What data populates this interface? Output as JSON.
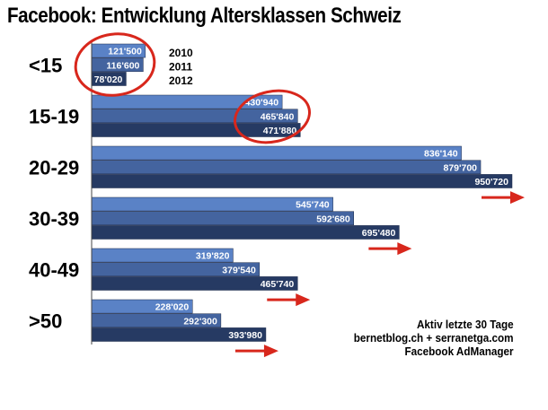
{
  "chart_data": {
    "type": "bar",
    "orientation": "horizontal",
    "title": "Facebook: Entwicklung Altersklassen Schweiz",
    "categories": [
      "<15",
      "15-19",
      "20-29",
      "30-39",
      "40-49",
      ">50"
    ],
    "series": [
      {
        "name": "2010",
        "color": "#5a82c6",
        "values": [
          121500,
          430940,
          836140,
          545740,
          319820,
          228020
        ],
        "labels": [
          "121'500",
          "430'940",
          "836'140",
          "545'740",
          "319'820",
          "228'020"
        ]
      },
      {
        "name": "2011",
        "color": "#44649f",
        "values": [
          116600,
          465840,
          879700,
          592680,
          379540,
          292300
        ],
        "labels": [
          "116'600",
          "465'840",
          "879'700",
          "592'680",
          "379'540",
          "292'300"
        ]
      },
      {
        "name": "2012",
        "color": "#263a63",
        "values": [
          78020,
          471880,
          950720,
          695480,
          465740,
          393980
        ],
        "labels": [
          "78'020",
          "471'880",
          "950'720",
          "695'480",
          "465'740",
          "393'980"
        ]
      }
    ],
    "xlim": [
      0,
      950720
    ],
    "grid": false,
    "legend": "top, next to first group",
    "annotations": {
      "circled_categories": [
        "<15",
        "15-19"
      ],
      "arrow_categories": [
        "20-29",
        "30-39",
        "40-49",
        ">50"
      ],
      "annotation_color": "#d8271c"
    }
  },
  "notes": [
    "Aktiv letzte 30 Tage",
    "bernetblog.ch + serranetga.com",
    "Facebook AdManager"
  ]
}
